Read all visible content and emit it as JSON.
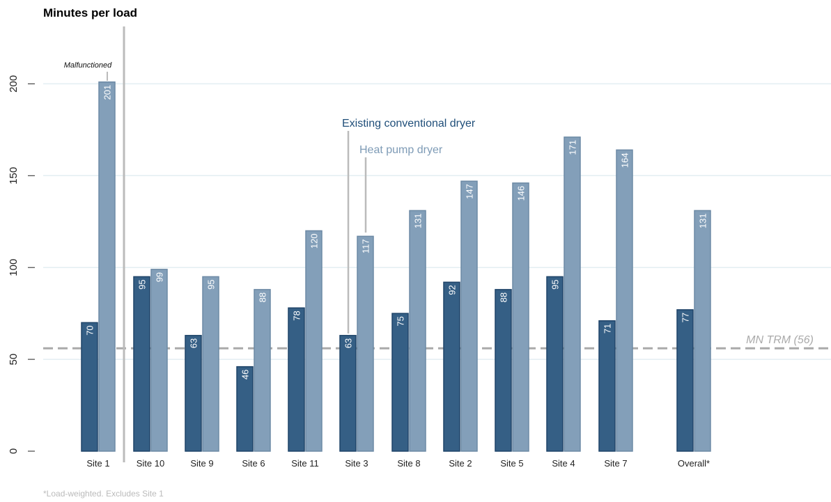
{
  "chart_data": {
    "type": "bar",
    "title": "Minutes per load",
    "xlabel": "",
    "ylabel": "",
    "ylim": [
      0,
      220
    ],
    "yticks": [
      0,
      50,
      100,
      150,
      200
    ],
    "grid": true,
    "categories": [
      "Site 1",
      "Site 10",
      "Site 9",
      "Site 6",
      "Site 11",
      "Site 3",
      "Site 8",
      "Site 2",
      "Site 5",
      "Site 4",
      "Site 7",
      "Overall*"
    ],
    "series": [
      {
        "name": "Existing conventional dryer",
        "color": "#355f85",
        "values": [
          70,
          95,
          63,
          46,
          78,
          63,
          75,
          92,
          88,
          95,
          71,
          77
        ]
      },
      {
        "name": "Heat pump dryer",
        "color": "#839fb9",
        "values": [
          201,
          99,
          95,
          88,
          120,
          117,
          131,
          147,
          146,
          171,
          164,
          131
        ]
      }
    ],
    "reference_line": {
      "label": "MN TRM (56)",
      "value": 56,
      "color": "#aaaaaa",
      "style": "dashed"
    },
    "annotations": [
      {
        "text": "Malfunctioned",
        "category": "Site 1",
        "series": "Heat pump dryer"
      }
    ],
    "footnote": "*Load-weighted. Excludes Site 1"
  }
}
